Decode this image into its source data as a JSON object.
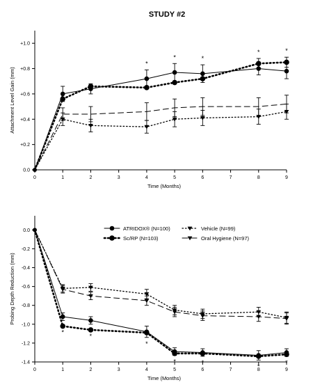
{
  "title": "STUDY #2",
  "chart_data": [
    {
      "type": "line",
      "ylabel": "Attachment Level Gain (mm)",
      "xlabel": "Time (Months)",
      "x": [
        0,
        1,
        2,
        4,
        5,
        6,
        8,
        9
      ],
      "xticks": [
        0,
        1,
        2,
        3,
        4,
        5,
        6,
        7,
        8,
        9
      ],
      "xlim": [
        0,
        9
      ],
      "ylim": [
        0,
        1.1
      ],
      "yticks": [
        {
          "v": 0,
          "label": "0.0"
        },
        {
          "v": 0.2,
          "label": "+0.2"
        },
        {
          "v": 0.4,
          "label": "+0.4"
        },
        {
          "v": 0.6,
          "label": "+0.6"
        },
        {
          "v": 0.8,
          "label": "+0.8"
        },
        {
          "v": 1.0,
          "label": "+1.0"
        }
      ],
      "series": [
        {
          "values": [
            0,
            0.6,
            0.64,
            0.72,
            0.77,
            0.76,
            0.8,
            0.78
          ],
          "err": [
            0,
            0.06,
            0.04,
            0.07,
            0.07,
            0.07,
            0.05,
            0.06
          ],
          "marker": "circle",
          "dash": "",
          "width": 1
        },
        {
          "values": [
            0,
            0.56,
            0.66,
            0.65,
            0.69,
            0.72,
            0.84,
            0.85
          ],
          "err": [
            0,
            0,
            0,
            0,
            0,
            0,
            0.04,
            0.04
          ],
          "marker": "bigdot",
          "dash": "1.5 3.5",
          "width": 2.6
        },
        {
          "values": [
            0,
            0.44,
            0.44,
            0.46,
            0.49,
            0.5,
            0.5,
            0.52
          ],
          "err": [
            0,
            0.05,
            0.06,
            0.07,
            0.07,
            0.07,
            0.07,
            0.07
          ],
          "marker": "none",
          "dash": "8 5",
          "width": 1
        },
        {
          "values": [
            0,
            0.4,
            0.35,
            0.34,
            0.4,
            0.41,
            0.42,
            0.46
          ],
          "err": [
            0,
            0.05,
            0.05,
            0.05,
            0.06,
            0.06,
            0.06,
            0.06
          ],
          "marker": "tri",
          "dash": "1.5 3",
          "width": 1.3
        }
      ],
      "significance": {
        "x": [
          4,
          5,
          6,
          8,
          9
        ],
        "label": "*",
        "position": "above"
      }
    },
    {
      "type": "line",
      "ylabel": "Probing Depth Reduction (mm)",
      "xlabel": "Time (Months)",
      "x": [
        0,
        1,
        2,
        4,
        5,
        6,
        8,
        9
      ],
      "xticks": [
        0,
        1,
        2,
        3,
        4,
        5,
        6,
        7,
        8,
        9
      ],
      "xlim": [
        0,
        9
      ],
      "ylim": [
        -1.4,
        0.15
      ],
      "yticks": [
        {
          "v": 0,
          "label": "0.0"
        },
        {
          "v": -0.2,
          "label": "-0.2"
        },
        {
          "v": -0.4,
          "label": "-0.4"
        },
        {
          "v": -0.6,
          "label": "-0.6"
        },
        {
          "v": -0.8,
          "label": "-0.8"
        },
        {
          "v": -1.0,
          "label": "-1.0"
        },
        {
          "v": -1.2,
          "label": "-1.2"
        },
        {
          "v": -1.4,
          "label": "-1.4"
        }
      ],
      "legend": {
        "position": "top-right"
      },
      "series": [
        {
          "name": "ATRIDOX® (N=100)",
          "values": [
            0,
            -0.92,
            -0.96,
            -1.08,
            -1.29,
            -1.3,
            -1.33,
            -1.3
          ],
          "err": [
            0,
            0.04,
            0.04,
            0.06,
            0.04,
            0.04,
            0.05,
            0.04
          ],
          "marker": "circle",
          "dash": "",
          "width": 1
        },
        {
          "name": "Sc/RP (N=103)",
          "values": [
            0,
            -1.02,
            -1.06,
            -1.09,
            -1.31,
            -1.31,
            -1.34,
            -1.32
          ],
          "err": [
            0,
            0,
            0,
            0,
            0,
            0,
            0,
            0
          ],
          "marker": "bigdot",
          "dash": "1.5 3.5",
          "width": 2.6
        },
        {
          "name": "Vehicle (N=99)",
          "values": [
            0,
            -0.62,
            -0.61,
            -0.68,
            -0.85,
            -0.89,
            -0.87,
            -0.93
          ],
          "err": [
            0,
            0.04,
            0.04,
            0.05,
            0.05,
            0.05,
            0.05,
            0.06
          ],
          "marker": "tri",
          "dash": "1.5 3",
          "width": 1.3
        },
        {
          "name": "Oral Hygiene (N=97)",
          "values": [
            0,
            -0.63,
            -0.7,
            -0.75,
            -0.87,
            -0.91,
            -0.92,
            -0.94
          ],
          "err": [
            0,
            0.04,
            0.04,
            0.05,
            0.05,
            0.05,
            0.05,
            0.06
          ],
          "marker": "tri",
          "dash": "8 5",
          "width": 1
        }
      ],
      "significance": {
        "x": [
          1,
          2,
          4,
          5,
          6,
          8,
          9
        ],
        "label": "*",
        "position": "below"
      }
    }
  ]
}
